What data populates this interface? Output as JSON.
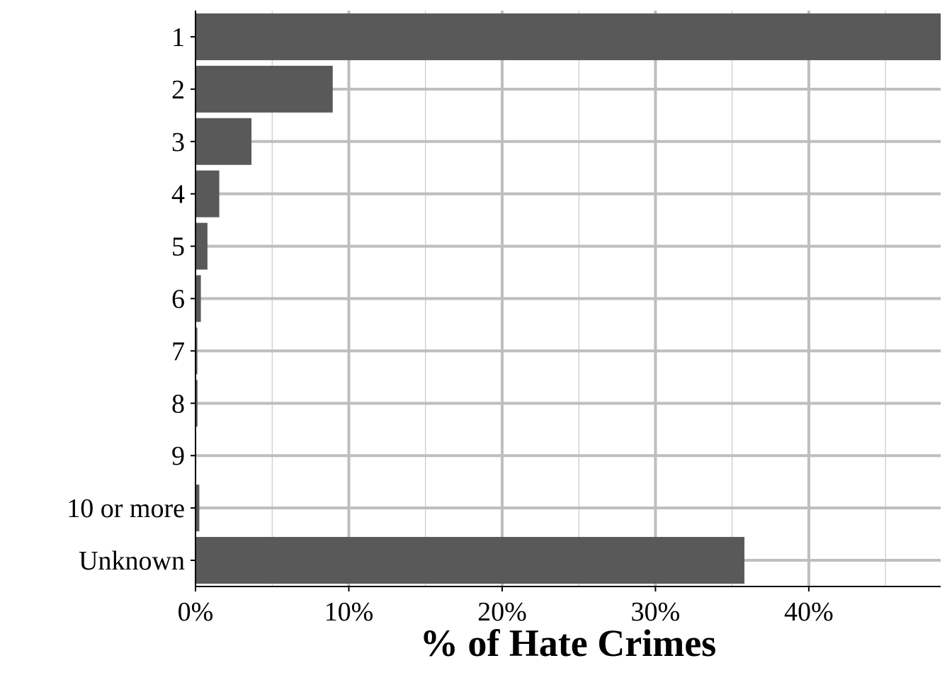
{
  "chart_data": {
    "type": "bar",
    "orientation": "horizontal",
    "categories": [
      "1",
      "2",
      "3",
      "4",
      "5",
      "6",
      "7",
      "8",
      "9",
      "10 or more",
      "Unknown"
    ],
    "values": [
      48.6,
      8.95,
      3.65,
      1.55,
      0.78,
      0.35,
      0.12,
      0.13,
      0.05,
      0.25,
      35.8
    ],
    "title": "",
    "xlabel": "% of Hate Crimes",
    "ylabel": "",
    "xlim": [
      0,
      48.6
    ],
    "x_ticks": [
      0,
      10,
      20,
      30,
      40
    ],
    "x_tick_labels": [
      "0%",
      "10%",
      "20%",
      "30%",
      "40%"
    ],
    "grid": true,
    "legend": "none",
    "colors": {
      "bar": "#595959",
      "grid": "#bebebe",
      "axis": "#000000",
      "background": "#ffffff"
    }
  }
}
